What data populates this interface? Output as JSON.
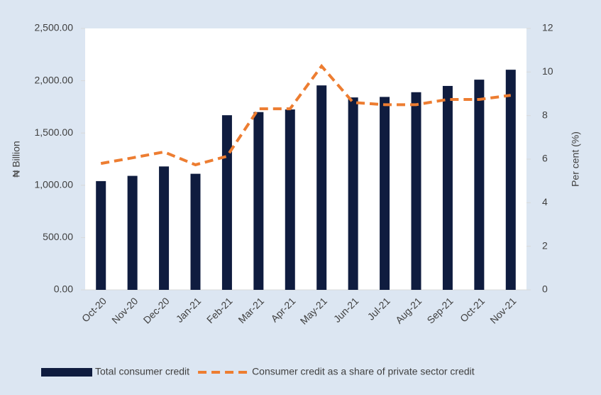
{
  "chart_data": {
    "type": "bar_line",
    "categories": [
      "Oct-20",
      "Nov-20",
      "Dec-20",
      "Jan-21",
      "Feb-21",
      "Mar-21",
      "Apr-21",
      "May-21",
      "Jun-21",
      "Jul-21",
      "Aug-21",
      "Sep-21",
      "Oct-21",
      "Nov-21"
    ],
    "series": [
      {
        "name": "Total consumer credit",
        "color": "#0f1c3f",
        "type": "bar",
        "values": [
          1040,
          1090,
          1180,
          1110,
          1670,
          1700,
          1725,
          1955,
          1840,
          1845,
          1890,
          1950,
          2010,
          2105
        ]
      },
      {
        "name": "Consumer credit as a share of private sector credit",
        "color": "#ed7d31",
        "type": "line",
        "axis": "y2",
        "values": [
          5.8,
          6.06,
          6.33,
          5.74,
          6.13,
          8.31,
          8.31,
          10.27,
          8.6,
          8.5,
          8.5,
          8.74,
          8.74,
          8.93
        ]
      }
    ],
    "ylabel": "₦ Billion",
    "y2label": "Per cent (%)",
    "ylim": [
      0,
      2500
    ],
    "yticks": [
      {
        "value": 0,
        "label": "0.00"
      },
      {
        "value": 500,
        "label": "500.00"
      },
      {
        "value": 1000,
        "label": "1,000.00"
      },
      {
        "value": 1500,
        "label": "1,500.00"
      },
      {
        "value": 2000,
        "label": "2,000.00"
      },
      {
        "value": 2500,
        "label": "2,500.00"
      }
    ],
    "y2lim": [
      0,
      12
    ],
    "y2ticks": [
      0,
      2,
      4,
      6,
      8,
      10,
      12
    ],
    "legend": "bottom"
  }
}
